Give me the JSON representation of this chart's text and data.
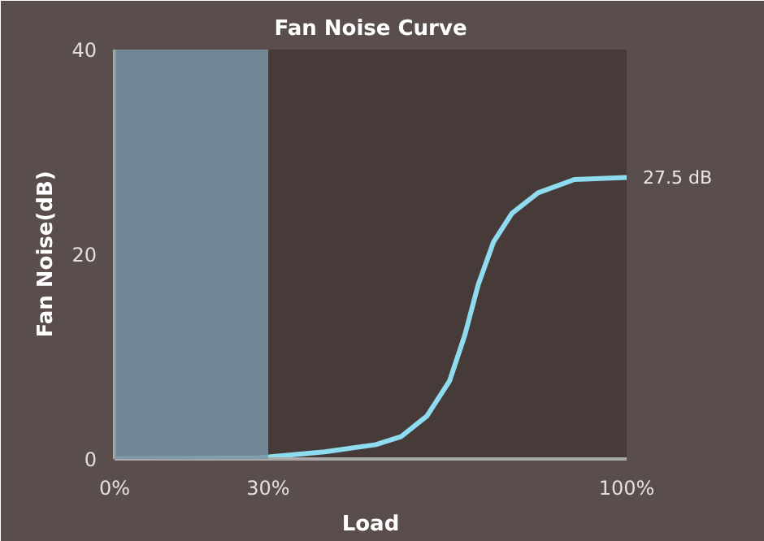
{
  "chart_data": {
    "type": "line",
    "title": "Fan Noise Curve",
    "xlabel": "Load",
    "ylabel": "Fan Noise(dB)",
    "x": [
      0,
      28,
      41,
      51,
      56,
      61,
      65.4,
      68.4,
      71,
      74,
      77.6,
      82.7,
      89.8,
      100
    ],
    "series": [
      {
        "color": "#8fdcf0",
        "values": [
          0,
          0.1,
          0.7,
          1.4,
          2.2,
          4.2,
          7.6,
          12.1,
          17,
          21.2,
          24,
          26,
          27.3,
          27.5
        ]
      }
    ],
    "xlim": [
      0,
      100
    ],
    "ylim": [
      0,
      40
    ],
    "xticks": [
      {
        "value": 0,
        "label": "0%"
      },
      {
        "value": 30,
        "label": "30%"
      },
      {
        "value": 100,
        "label": "100%"
      }
    ],
    "yticks": [
      0,
      20,
      40
    ],
    "bands": [
      {
        "axis": "x",
        "from": 0,
        "to": 30,
        "color": "#7a97a8"
      }
    ],
    "annotations": [
      {
        "text": "27.5 dB",
        "x": 100,
        "y": 27.5
      }
    ],
    "grid": false
  }
}
